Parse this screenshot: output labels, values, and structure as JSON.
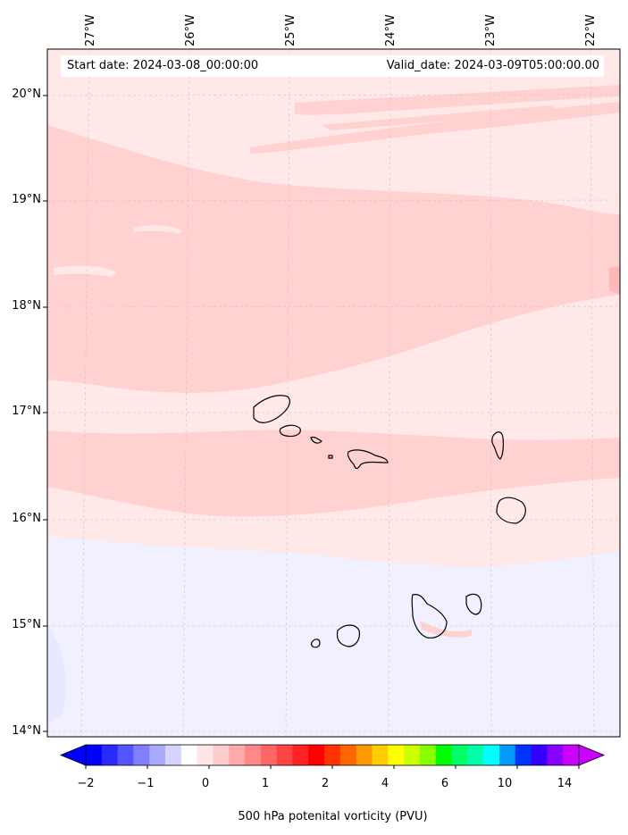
{
  "header": {
    "start_text": "Start date: 2024-03-08_00:00:00",
    "valid_text": "Valid_date: 2024-03-09T05:00:00.00"
  },
  "map": {
    "variable": "500 hPa potenital vorticity (PVU)",
    "lon_labels": [
      "27°W",
      "26°W",
      "25°W",
      "24°W",
      "23°W",
      "22°W"
    ],
    "lat_labels": [
      "20°N",
      "19°N",
      "18°N",
      "17°N",
      "16°N",
      "15°N",
      "14°N"
    ],
    "islands": [
      "Santo Antão",
      "São Vicente",
      "Santa Luzia",
      "Branco",
      "São Nicolau",
      "Sal",
      "Boa Vista",
      "Maio",
      "Santiago",
      "Fogo",
      "Brava"
    ]
  },
  "colorbar": {
    "ticks": [
      "−2",
      "−1",
      "0",
      "1",
      "2",
      "4",
      "6",
      "10",
      "14"
    ],
    "label": "500 hPa potenital vorticity (PVU)",
    "colors": [
      "#0000ff",
      "#2a2aff",
      "#5555ff",
      "#7f7fff",
      "#aaaaff",
      "#d4d4ff",
      "#ffffff",
      "#ffe5e5",
      "#ffcccc",
      "#ffaaaa",
      "#ff8888",
      "#ff6666",
      "#ff4444",
      "#ff2222",
      "#ff0000",
      "#ff3300",
      "#ff6600",
      "#ff9900",
      "#ffcc00",
      "#ffff00",
      "#ccff00",
      "#88ff00",
      "#00ff00",
      "#00ff66",
      "#00ffaa",
      "#00ffff",
      "#0099ff",
      "#0033ff",
      "#3300ff",
      "#8800ff",
      "#cc00ff"
    ]
  }
}
